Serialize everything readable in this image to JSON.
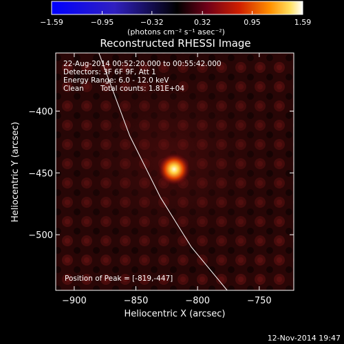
{
  "chart_data": {
    "type": "heatmap",
    "title": "Reconstructed RHESSI Image",
    "xlabel": "Heliocentric X (arcsec)",
    "ylabel": "Heliocentric Y (arcsec)",
    "xlim": [
      -915,
      -722
    ],
    "ylim": [
      -545,
      -353
    ],
    "xticks": [
      -900,
      -850,
      -800,
      -750
    ],
    "yticks": [
      -400,
      -450,
      -500
    ],
    "xtick_labels": [
      "−900",
      "−850",
      "−800",
      "−750"
    ],
    "ytick_labels": [
      "−400",
      "−450",
      "−500"
    ],
    "colorbar": {
      "min": -1.59,
      "max": 1.59,
      "ticks": [
        -1.59,
        -0.95,
        -0.32,
        0.32,
        0.95,
        1.59
      ],
      "tick_labels": [
        "−1.59",
        "−0.95",
        "−0.32",
        "0.32",
        "0.95",
        "1.59"
      ],
      "units_label": "(photons cm⁻² s⁻¹ asec⁻²)"
    },
    "peak": {
      "x": -819,
      "y": -447
    },
    "limb_points": [
      [
        -880,
        -353
      ],
      [
        -855,
        -420
      ],
      [
        -830,
        -470
      ],
      [
        -805,
        -510
      ],
      [
        -776,
        -545
      ]
    ],
    "colors": {
      "negative": "#0000ff",
      "zero": "#000000",
      "mid": "#800020",
      "high": "#ff8000",
      "peak": "#ffffff",
      "limb_line": "#ffffff"
    },
    "annotations": {
      "time_range": "22-Aug-2014 00:52:20.000 to 00:55:42.000",
      "detectors": "Detectors: 3F 6F 9F, Att 1",
      "energy_range": "Energy Range: 6.0 - 12.0 keV",
      "algorithm": "Clean",
      "total_counts": "Total counts: 1.81E+04",
      "peak_position": "Position of Peak = [-819,-447]"
    }
  },
  "footer": {
    "date": "12-Nov-2014 19:47"
  }
}
